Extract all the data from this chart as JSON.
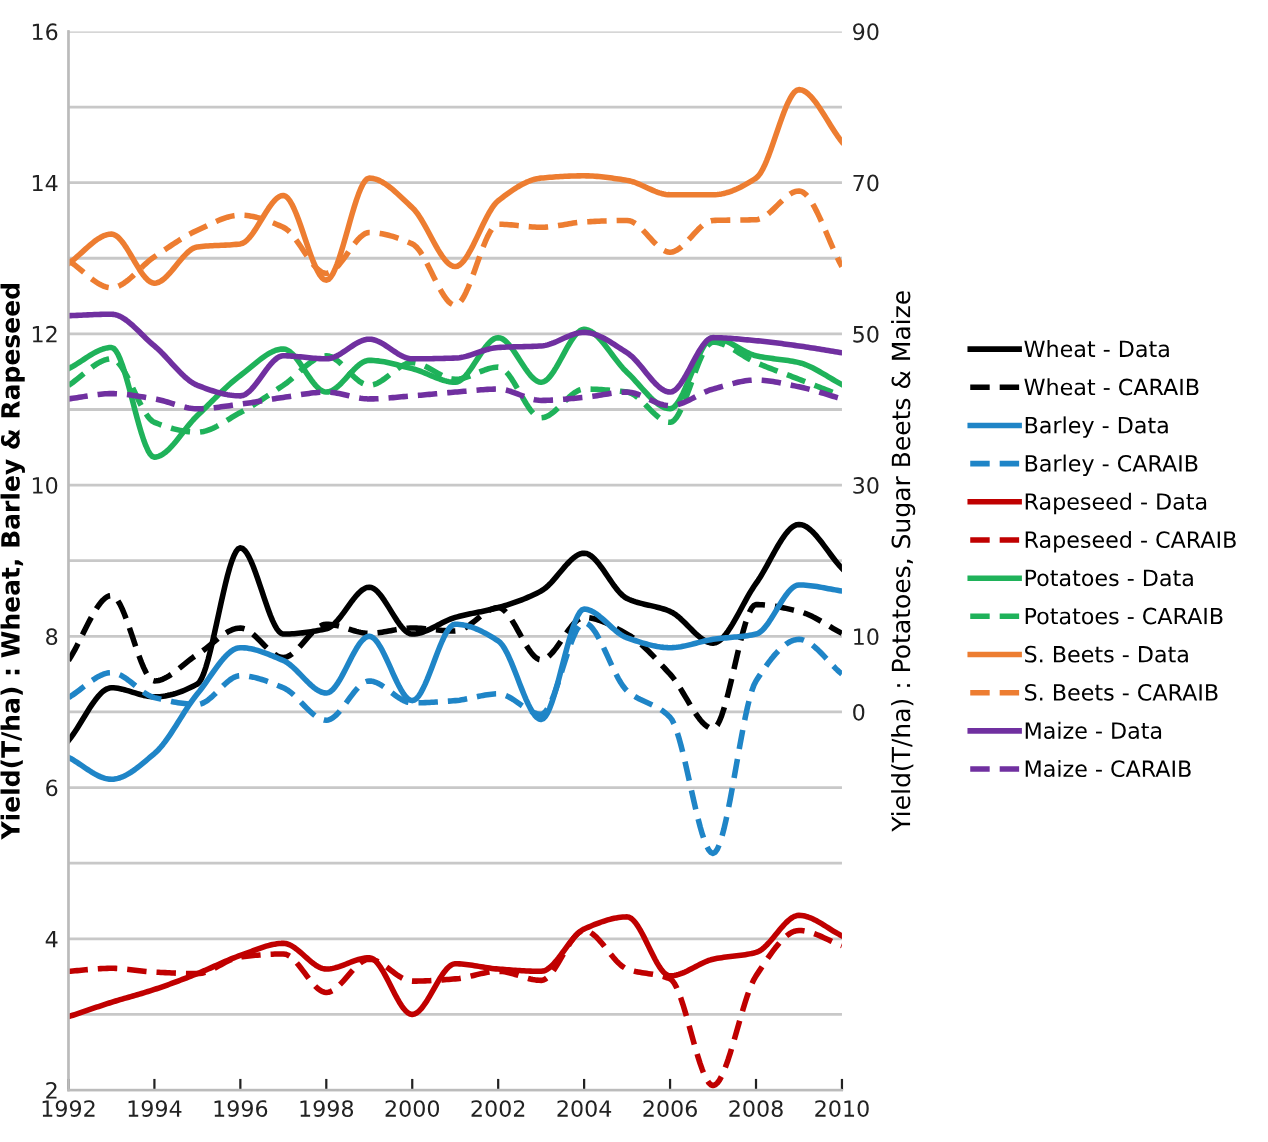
{
  "chart_data": {
    "type": "line",
    "ylabel": "Yield(T/ha) : Wheat, Barley & Rapeseed",
    "y2label": "Yield(T/ha) : Potatoes, Sugar Beets & Maize",
    "x": [
      1992,
      1993,
      1994,
      1995,
      1996,
      1997,
      1998,
      1999,
      2000,
      2001,
      2002,
      2003,
      2004,
      2005,
      2006,
      2007,
      2008,
      2009,
      2010
    ],
    "xlim": [
      1992,
      2010
    ],
    "xticks": [
      1992,
      1994,
      1996,
      1998,
      2000,
      2002,
      2004,
      2006,
      2008,
      2010
    ],
    "ylim": [
      2,
      16
    ],
    "yticks": [
      2,
      {
        "value": 3,
        "label": null
      },
      4,
      {
        "value": 5,
        "label": null
      },
      6,
      {
        "value": 7,
        "label": null
      },
      8,
      {
        "value": 9,
        "label": null
      },
      10,
      {
        "value": 11,
        "label": null
      },
      12,
      {
        "value": 13,
        "label": null
      },
      14,
      {
        "value": 15,
        "label": null
      },
      16
    ],
    "y2lim": [
      -50,
      90
    ],
    "y2ticks": [
      0,
      10,
      30,
      50,
      70,
      90
    ],
    "grid": "y",
    "legend": "right",
    "marker": "none",
    "series": [
      {
        "name": "Wheat - Data",
        "color": "#000000",
        "line_style": "solid",
        "values": [
          6.62,
          7.32,
          7.2,
          7.37,
          9.17,
          8.03,
          8.1,
          8.65,
          8.03,
          8.25,
          8.38,
          8.6,
          9.1,
          8.5,
          8.33,
          7.91,
          8.7,
          9.48,
          8.9
        ]
      },
      {
        "name": "Wheat - CARAIB",
        "color": "#000000",
        "line_style": "dashed",
        "values": [
          7.68,
          8.54,
          7.41,
          7.76,
          8.11,
          7.72,
          8.16,
          8.04,
          8.11,
          8.07,
          8.38,
          7.69,
          8.25,
          8.03,
          7.5,
          6.78,
          8.42,
          8.33,
          8.04
        ]
      },
      {
        "name": "Barley - Data",
        "color": "#1f85c7",
        "line_style": "solid",
        "values": [
          6.4,
          6.11,
          6.45,
          7.24,
          7.85,
          7.68,
          7.25,
          8.0,
          7.15,
          8.16,
          7.94,
          6.9,
          8.36,
          7.98,
          7.85,
          7.96,
          8.03,
          8.68,
          8.6
        ]
      },
      {
        "name": "Barley - CARAIB",
        "color": "#1f85c7",
        "line_style": "dashed",
        "values": [
          7.19,
          7.52,
          7.19,
          7.1,
          7.48,
          7.32,
          6.89,
          7.41,
          7.12,
          7.15,
          7.24,
          6.97,
          8.18,
          7.28,
          6.93,
          5.13,
          7.41,
          7.96,
          7.5
        ]
      },
      {
        "name": "Rapeseed - Data",
        "color": "#c00000",
        "line_style": "solid",
        "values": [
          2.97,
          3.16,
          3.33,
          3.54,
          3.78,
          3.94,
          3.6,
          3.75,
          3.0,
          3.67,
          3.6,
          3.57,
          4.13,
          4.29,
          3.51,
          3.73,
          3.82,
          4.31,
          4.04
        ]
      },
      {
        "name": "Rapeseed - CARAIB",
        "color": "#c00000",
        "line_style": "dashed",
        "values": [
          3.57,
          3.61,
          3.56,
          3.54,
          3.76,
          3.8,
          3.29,
          3.73,
          3.44,
          3.47,
          3.57,
          3.45,
          4.11,
          3.6,
          3.47,
          2.06,
          3.51,
          4.11,
          3.91
        ]
      },
      {
        "name": "Potatoes - Data",
        "color": "#1fb25a",
        "line_style": "solid",
        "axis": "y2",
        "values": [
          45.4,
          48.2,
          33.7,
          39.2,
          44.5,
          48.0,
          42.3,
          46.5,
          45.4,
          43.6,
          49.5,
          43.6,
          50.6,
          44.9,
          40.1,
          49.5,
          47.1,
          46.2,
          43.3
        ]
      },
      {
        "name": "Potatoes - CARAIB",
        "color": "#1fb25a",
        "line_style": "dashed",
        "axis": "y2",
        "values": [
          43.2,
          46.7,
          38.3,
          37.0,
          39.6,
          43.2,
          47.1,
          43.2,
          46.2,
          44.0,
          45.6,
          38.9,
          42.7,
          42.3,
          38.3,
          48.9,
          46.2,
          44.0,
          41.8
        ]
      },
      {
        "name": "S. Beets - Data",
        "color": "#ed7d31",
        "line_style": "solid",
        "axis": "y2",
        "values": [
          59.3,
          63.2,
          56.7,
          61.5,
          61.9,
          68.3,
          57.1,
          70.6,
          66.7,
          58.9,
          67.6,
          70.6,
          70.9,
          70.3,
          68.4,
          68.4,
          70.6,
          82.3,
          75.4
        ]
      },
      {
        "name": "S. Beets - CARAIB",
        "color": "#ed7d31",
        "line_style": "dashed",
        "axis": "y2",
        "values": [
          59.7,
          56.1,
          60.2,
          63.7,
          65.7,
          64.1,
          58.0,
          63.4,
          61.9,
          53.8,
          64.5,
          64.1,
          64.8,
          65.0,
          60.8,
          65.0,
          65.1,
          68.9,
          58.9
        ]
      },
      {
        "name": "Maize - Data",
        "color": "#7030a0",
        "line_style": "solid",
        "axis": "y2",
        "values": [
          52.4,
          52.6,
          48.4,
          43.2,
          41.8,
          47.1,
          46.7,
          49.3,
          46.7,
          46.8,
          48.2,
          48.4,
          50.2,
          47.5,
          42.3,
          49.5,
          49.1,
          48.4,
          47.5
        ]
      },
      {
        "name": "Maize - CARAIB",
        "color": "#7030a0",
        "line_style": "dashed",
        "axis": "y2",
        "values": [
          41.4,
          42.1,
          41.4,
          40.1,
          40.7,
          41.6,
          42.3,
          41.4,
          41.8,
          42.3,
          42.7,
          41.2,
          41.6,
          42.3,
          40.5,
          42.7,
          43.9,
          43.0,
          41.4
        ]
      }
    ]
  }
}
